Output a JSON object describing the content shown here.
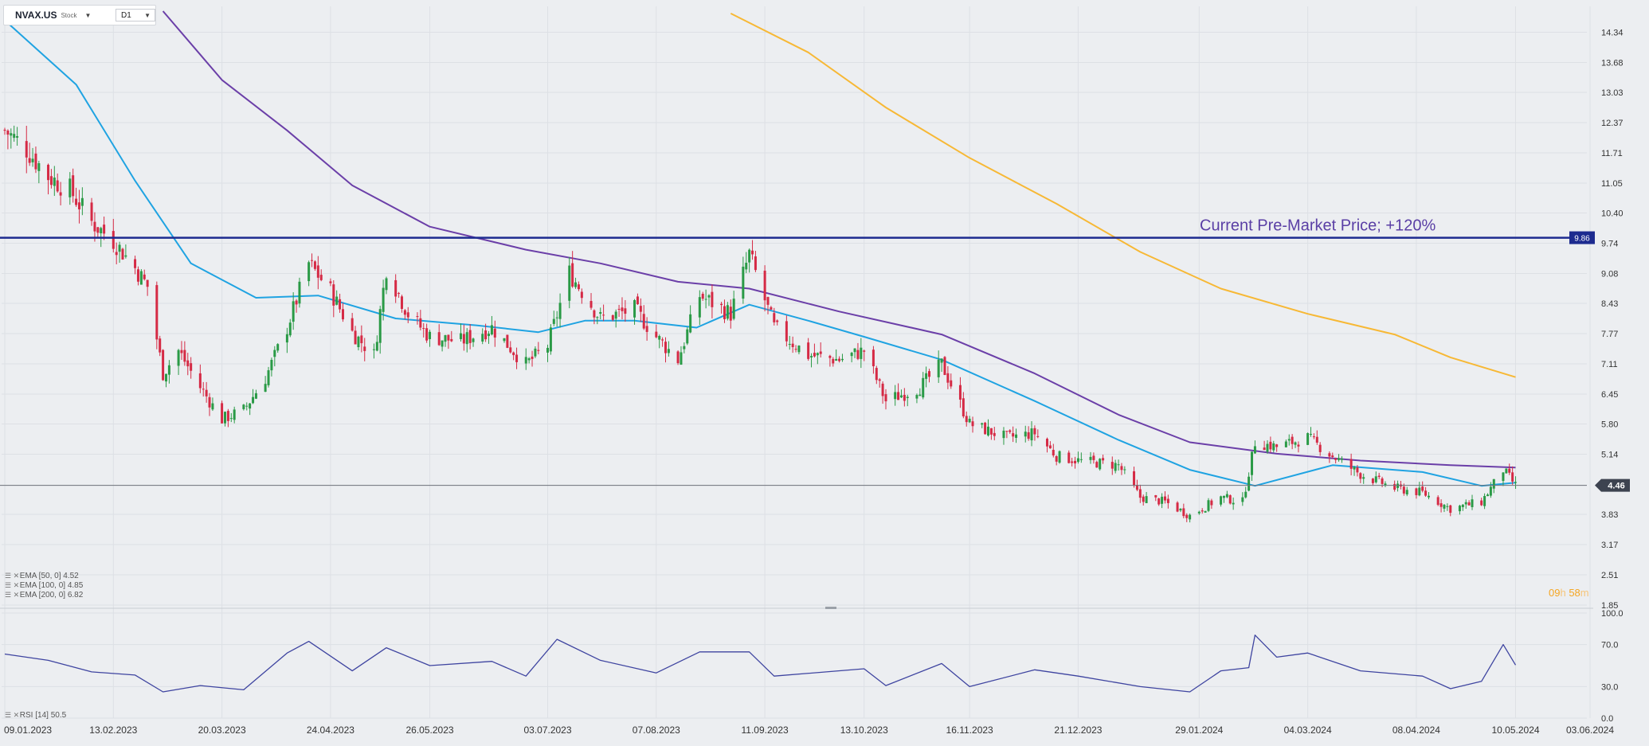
{
  "header": {
    "symbol": "NVAX.US",
    "type_label": "Stock",
    "timeframe": "D1"
  },
  "annotation": {
    "text": "Current Pre-Market Price; +120%",
    "price_tag": "9.86",
    "price": 9.86
  },
  "last_price": {
    "label": "4.46",
    "value": 4.46
  },
  "countdown": {
    "hours": "09",
    "hours_unit": "h",
    "minutes": "58",
    "minutes_unit": "m"
  },
  "indicators": [
    {
      "label": "EMA [50, 0]",
      "value": "4.52"
    },
    {
      "label": "EMA [100, 0]",
      "value": "4.85"
    },
    {
      "label": "EMA [200, 0]",
      "value": "6.82"
    }
  ],
  "rsi": {
    "label": "RSI [14]",
    "value": "50.5"
  },
  "colors": {
    "background": "#eceef1",
    "candle_up": "#2a9a46",
    "candle_down": "#d52a45",
    "ema50": "#1fa3e2",
    "ema100": "#6b3fa8",
    "ema200": "#f7b835",
    "premarket_line": "#1d2b8f",
    "rsi_line": "#3e44a0"
  },
  "chart_data": {
    "type": "candlestick",
    "price_axis": {
      "range": [
        1.85,
        14.8
      ],
      "ticks": [
        "14.34",
        "13.68",
        "13.03",
        "12.37",
        "11.71",
        "11.05",
        "10.40",
        "9.74",
        "9.08",
        "8.43",
        "7.77",
        "7.11",
        "6.45",
        "5.80",
        "5.14",
        "4.46",
        "3.83",
        "3.17",
        "2.51",
        "1.85"
      ]
    },
    "rsi_axis": {
      "range": [
        0,
        100
      ],
      "ticks": [
        "100.0",
        "70.0",
        "30.0",
        "0.0"
      ]
    },
    "time_axis": {
      "start": "2023-01-09",
      "end": "2024-06-14",
      "labels": [
        "09.01.2023",
        "13.02.2023",
        "20.03.2023",
        "24.04.2023",
        "26.05.2023",
        "03.07.2023",
        "07.08.2023",
        "11.09.2023",
        "13.10.2023",
        "16.11.2023",
        "21.12.2023",
        "29.01.2024",
        "04.03.2024",
        "08.04.2024",
        "10.05.2024",
        "03.06.2024"
      ]
    },
    "close_series": [
      [
        "2023-01-09",
        12.2
      ],
      [
        "2023-01-16",
        11.8
      ],
      [
        "2023-01-23",
        11.2
      ],
      [
        "2023-01-30",
        10.9
      ],
      [
        "2023-02-06",
        10.2
      ],
      [
        "2023-02-13",
        9.8
      ],
      [
        "2023-02-20",
        9.2
      ],
      [
        "2023-02-24",
        8.8
      ],
      [
        "2023-03-01",
        6.9
      ],
      [
        "2023-03-06",
        7.4
      ],
      [
        "2023-03-13",
        6.6
      ],
      [
        "2023-03-20",
        5.9
      ],
      [
        "2023-03-27",
        6.1
      ],
      [
        "2023-04-03",
        6.8
      ],
      [
        "2023-04-10",
        7.9
      ],
      [
        "2023-04-17",
        9.3
      ],
      [
        "2023-04-24",
        8.7
      ],
      [
        "2023-05-01",
        7.8
      ],
      [
        "2023-05-08",
        7.3
      ],
      [
        "2023-05-12",
        9.2
      ],
      [
        "2023-05-19",
        8.2
      ],
      [
        "2023-05-26",
        7.7
      ],
      [
        "2023-06-05",
        7.6
      ],
      [
        "2023-06-15",
        7.9
      ],
      [
        "2023-06-26",
        7.1
      ],
      [
        "2023-07-03",
        7.5
      ],
      [
        "2023-07-10",
        9.1
      ],
      [
        "2023-07-20",
        8.1
      ],
      [
        "2023-07-31",
        8.3
      ],
      [
        "2023-08-07",
        7.7
      ],
      [
        "2023-08-14",
        7.2
      ],
      [
        "2023-08-21",
        8.6
      ],
      [
        "2023-08-31",
        8.2
      ],
      [
        "2023-09-06",
        9.5
      ],
      [
        "2023-09-14",
        7.9
      ],
      [
        "2023-09-25",
        7.3
      ],
      [
        "2023-10-05",
        7.2
      ],
      [
        "2023-10-13",
        7.4
      ],
      [
        "2023-10-20",
        6.3
      ],
      [
        "2023-10-31",
        6.6
      ],
      [
        "2023-11-07",
        7.1
      ],
      [
        "2023-11-16",
        5.8
      ],
      [
        "2023-11-28",
        5.5
      ],
      [
        "2023-12-07",
        5.6
      ],
      [
        "2023-12-14",
        5.1
      ],
      [
        "2023-12-21",
        5.0
      ],
      [
        "2024-01-03",
        4.9
      ],
      [
        "2024-01-10",
        4.2
      ],
      [
        "2024-01-18",
        4.1
      ],
      [
        "2024-01-26",
        3.8
      ],
      [
        "2024-02-05",
        4.2
      ],
      [
        "2024-02-12",
        4.1
      ],
      [
        "2024-02-16",
        5.4
      ],
      [
        "2024-02-23",
        5.3
      ],
      [
        "2024-03-04",
        5.5
      ],
      [
        "2024-03-12",
        5.1
      ],
      [
        "2024-03-21",
        4.7
      ],
      [
        "2024-04-01",
        4.4
      ],
      [
        "2024-04-10",
        4.3
      ],
      [
        "2024-04-19",
        3.95
      ],
      [
        "2024-04-29",
        4.1
      ],
      [
        "2024-05-06",
        4.8
      ],
      [
        "2024-05-10",
        4.46
      ]
    ],
    "series": [
      {
        "name": "EMA [50, 0]",
        "last": 4.52,
        "points": [
          [
            "2023-01-09",
            14.6
          ],
          [
            "2023-02-01",
            13.2
          ],
          [
            "2023-02-20",
            11.1
          ],
          [
            "2023-03-10",
            9.3
          ],
          [
            "2023-03-31",
            8.55
          ],
          [
            "2023-04-20",
            8.6
          ],
          [
            "2023-05-15",
            8.1
          ],
          [
            "2023-06-10",
            7.95
          ],
          [
            "2023-06-30",
            7.8
          ],
          [
            "2023-07-15",
            8.05
          ],
          [
            "2023-07-31",
            8.05
          ],
          [
            "2023-08-20",
            7.9
          ],
          [
            "2023-09-06",
            8.4
          ],
          [
            "2023-09-25",
            8.05
          ],
          [
            "2023-10-13",
            7.7
          ],
          [
            "2023-11-07",
            7.2
          ],
          [
            "2023-12-07",
            6.3
          ],
          [
            "2024-01-03",
            5.45
          ],
          [
            "2024-01-26",
            4.8
          ],
          [
            "2024-02-16",
            4.45
          ],
          [
            "2024-03-12",
            4.9
          ],
          [
            "2024-04-10",
            4.75
          ],
          [
            "2024-04-29",
            4.45
          ],
          [
            "2024-05-10",
            4.52
          ]
        ]
      },
      {
        "name": "EMA [100, 0]",
        "last": 4.85,
        "points": [
          [
            "2023-03-01",
            14.8
          ],
          [
            "2023-03-20",
            13.3
          ],
          [
            "2023-04-10",
            12.2
          ],
          [
            "2023-05-01",
            11.0
          ],
          [
            "2023-05-26",
            10.1
          ],
          [
            "2023-06-26",
            9.6
          ],
          [
            "2023-07-20",
            9.3
          ],
          [
            "2023-08-14",
            8.9
          ],
          [
            "2023-09-06",
            8.75
          ],
          [
            "2023-10-05",
            8.25
          ],
          [
            "2023-11-07",
            7.75
          ],
          [
            "2023-12-07",
            6.9
          ],
          [
            "2024-01-03",
            6.0
          ],
          [
            "2024-01-26",
            5.4
          ],
          [
            "2024-02-23",
            5.15
          ],
          [
            "2024-03-21",
            5.0
          ],
          [
            "2024-04-19",
            4.9
          ],
          [
            "2024-05-10",
            4.85
          ]
        ]
      },
      {
        "name": "EMA [200, 0]",
        "last": 6.82,
        "points": [
          [
            "2023-08-31",
            14.75
          ],
          [
            "2023-09-25",
            13.9
          ],
          [
            "2023-10-20",
            12.7
          ],
          [
            "2023-11-16",
            11.6
          ],
          [
            "2023-12-14",
            10.6
          ],
          [
            "2024-01-10",
            9.55
          ],
          [
            "2024-02-05",
            8.75
          ],
          [
            "2024-03-04",
            8.2
          ],
          [
            "2024-04-01",
            7.75
          ],
          [
            "2024-04-19",
            7.25
          ],
          [
            "2024-05-10",
            6.82
          ]
        ]
      }
    ],
    "rsi_series": [
      [
        "2023-01-09",
        61
      ],
      [
        "2023-01-23",
        55
      ],
      [
        "2023-02-06",
        44
      ],
      [
        "2023-02-20",
        41
      ],
      [
        "2023-03-01",
        25
      ],
      [
        "2023-03-13",
        31
      ],
      [
        "2023-03-27",
        27
      ],
      [
        "2023-04-10",
        62
      ],
      [
        "2023-04-17",
        73
      ],
      [
        "2023-05-01",
        45
      ],
      [
        "2023-05-12",
        67
      ],
      [
        "2023-05-26",
        50
      ],
      [
        "2023-06-15",
        54
      ],
      [
        "2023-06-26",
        40
      ],
      [
        "2023-07-06",
        75
      ],
      [
        "2023-07-20",
        55
      ],
      [
        "2023-08-07",
        43
      ],
      [
        "2023-08-21",
        63
      ],
      [
        "2023-09-06",
        63
      ],
      [
        "2023-09-14",
        40
      ],
      [
        "2023-10-13",
        47
      ],
      [
        "2023-10-20",
        31
      ],
      [
        "2023-11-07",
        52
      ],
      [
        "2023-11-16",
        30
      ],
      [
        "2023-12-07",
        46
      ],
      [
        "2023-12-21",
        40
      ],
      [
        "2024-01-10",
        30
      ],
      [
        "2024-01-26",
        25
      ],
      [
        "2024-02-05",
        45
      ],
      [
        "2024-02-14",
        48
      ],
      [
        "2024-02-16",
        79
      ],
      [
        "2024-02-23",
        58
      ],
      [
        "2024-03-04",
        62
      ],
      [
        "2024-03-21",
        45
      ],
      [
        "2024-04-10",
        40
      ],
      [
        "2024-04-19",
        28
      ],
      [
        "2024-04-29",
        35
      ],
      [
        "2024-05-06",
        70
      ],
      [
        "2024-05-10",
        50.5
      ]
    ]
  }
}
